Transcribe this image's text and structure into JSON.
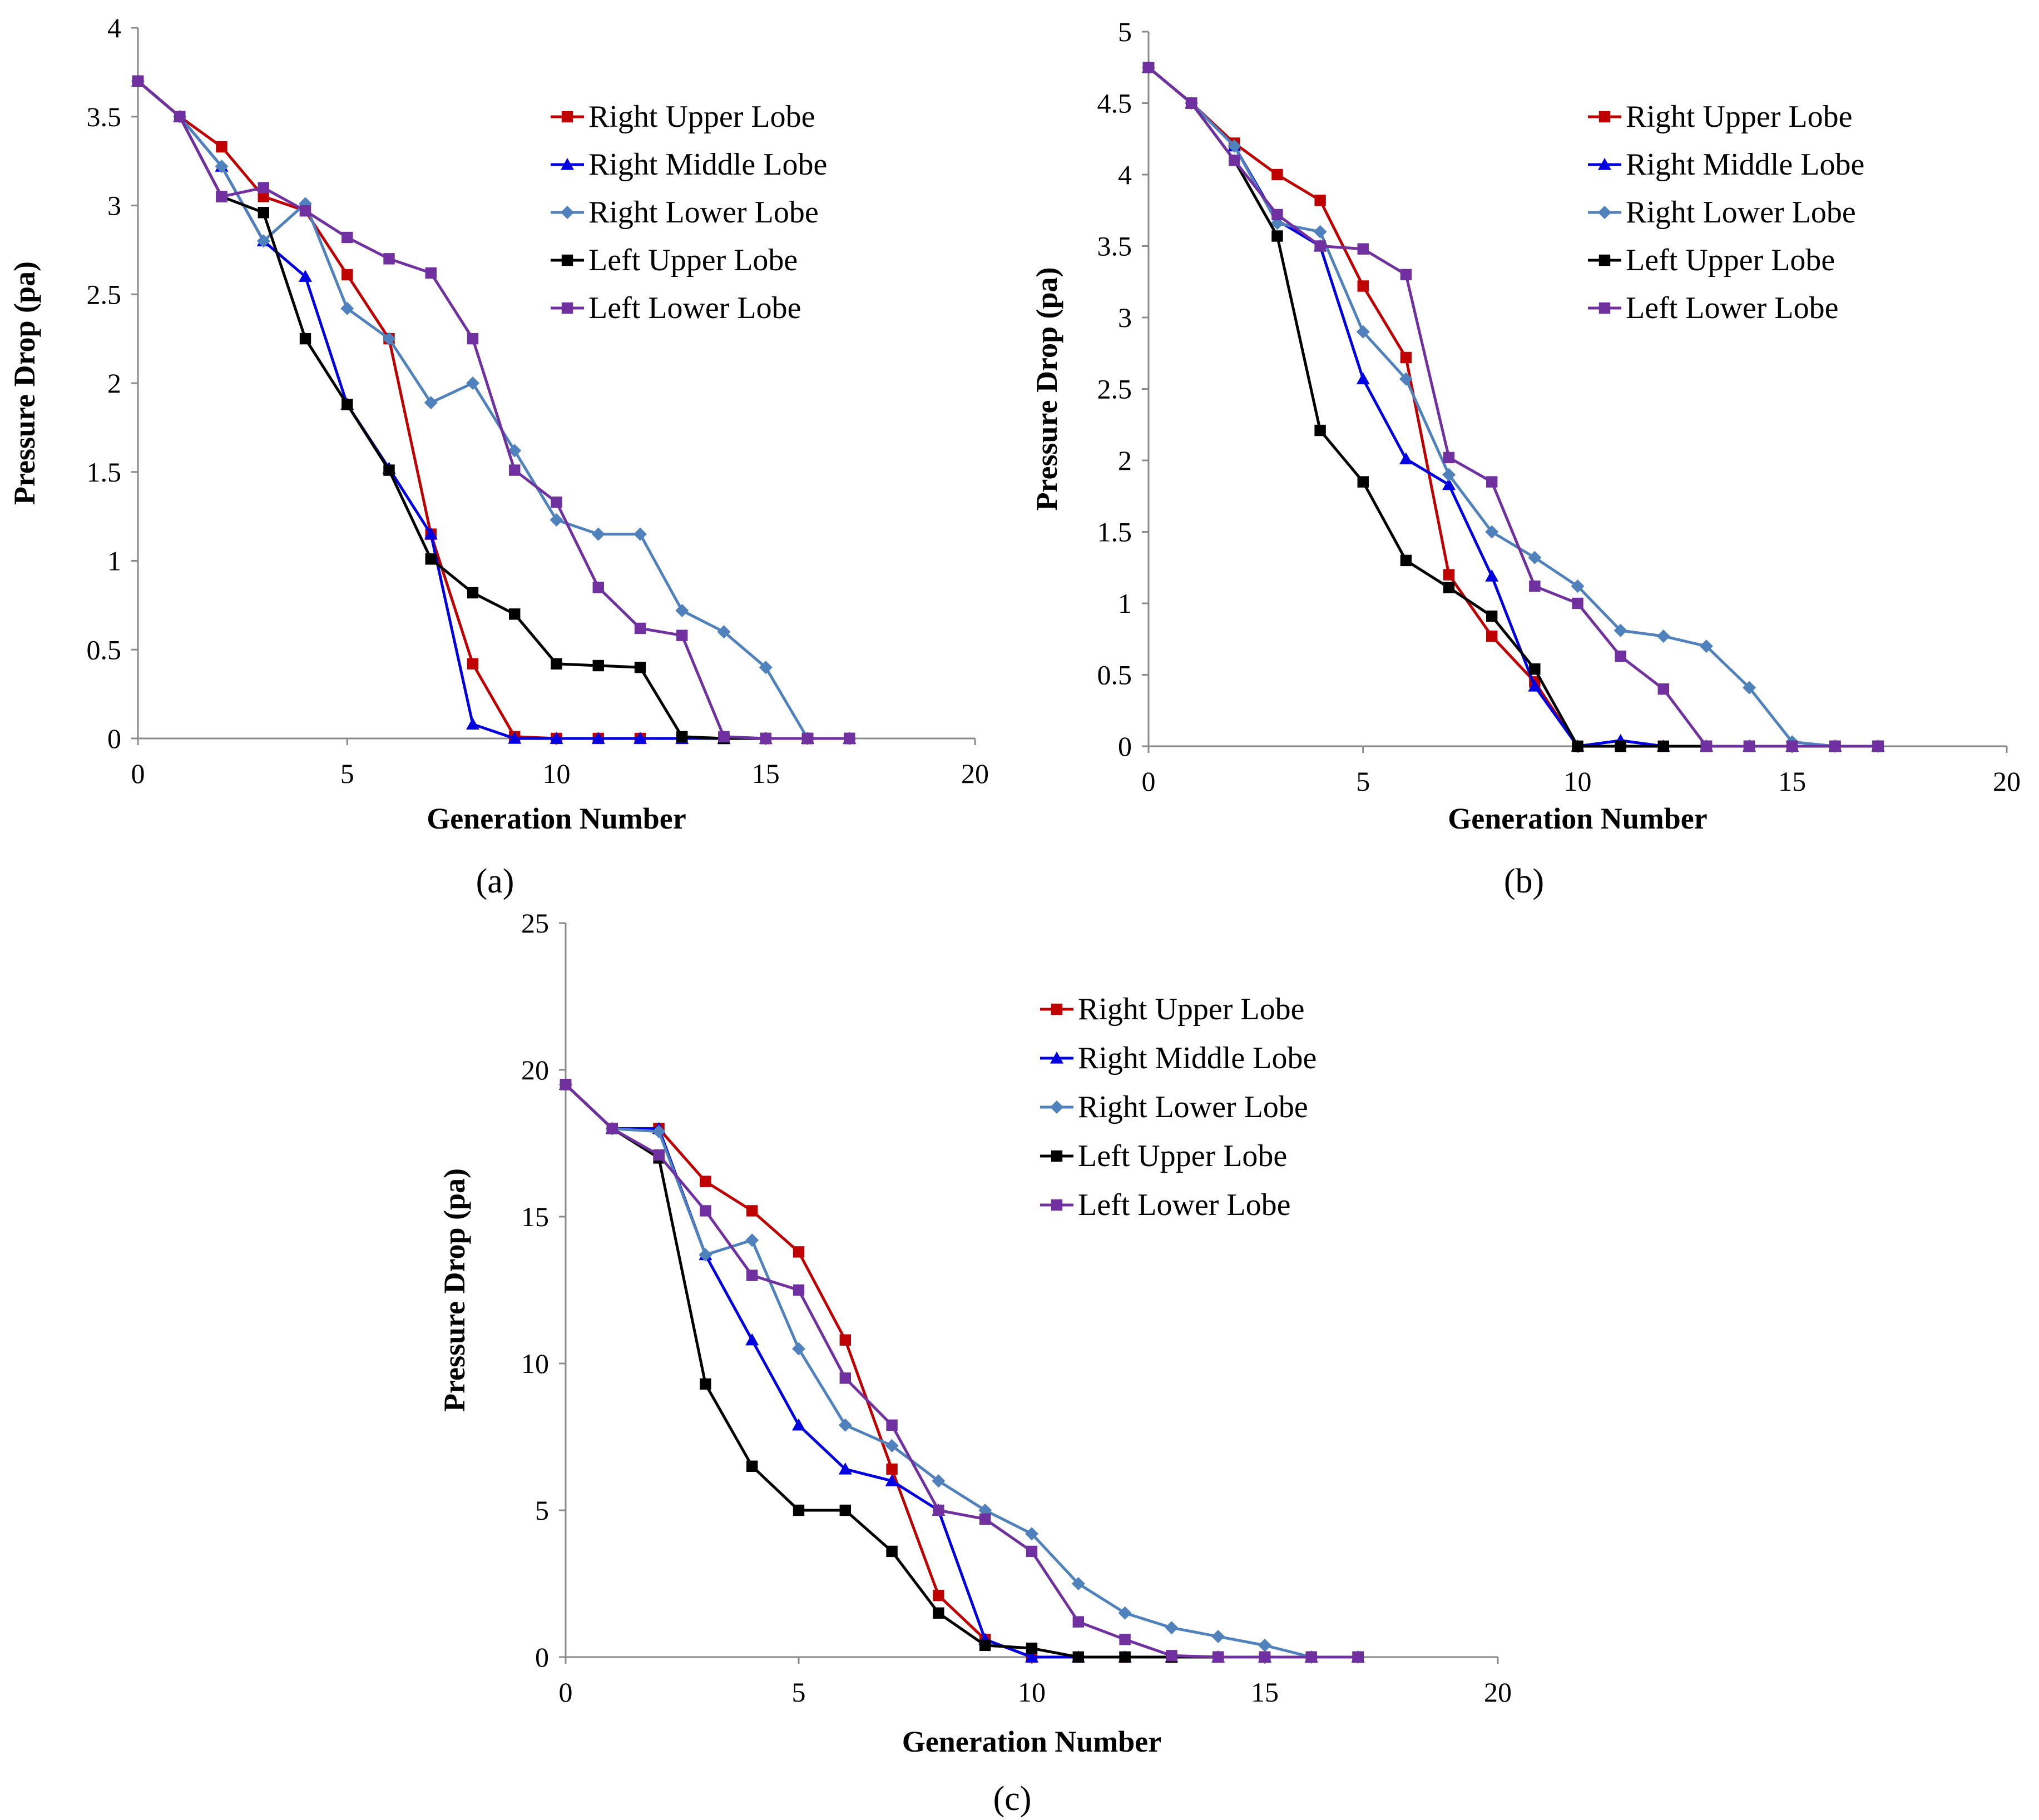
{
  "chart_data": [
    {
      "type": "line",
      "panel_label": "(a)",
      "title": "",
      "xlabel": "Generation Number",
      "ylabel": "Pressure Drop (pa)",
      "xlim": [
        0,
        20
      ],
      "ylim": [
        0,
        4
      ],
      "xticks": [
        0,
        5,
        10,
        15,
        20
      ],
      "yticks": [
        0,
        0.5,
        1,
        1.5,
        2,
        2.5,
        3,
        3.5,
        4
      ],
      "ytick_labels": [
        "0",
        "0.5",
        "1",
        "1.5",
        "2",
        "2.5",
        "3",
        "3.5",
        "4"
      ],
      "grid": false,
      "legend_position": "top-right",
      "series": [
        {
          "name": "Right Upper Lobe",
          "color": "#c00000",
          "marker": "square",
          "x": [
            0,
            1,
            2,
            3,
            4,
            5,
            6,
            7,
            8,
            9,
            10,
            11,
            12,
            13,
            14,
            15,
            16,
            17
          ],
          "y": [
            3.7,
            3.5,
            3.33,
            3.05,
            2.97,
            2.61,
            2.25,
            1.15,
            0.42,
            0.01,
            0,
            0,
            0,
            0,
            0,
            0,
            0,
            0
          ]
        },
        {
          "name": "Right Middle Lobe",
          "color": "#0000e0",
          "marker": "triangle",
          "x": [
            0,
            1,
            2,
            3,
            4,
            5,
            6,
            7,
            8,
            9,
            10,
            11,
            12,
            13,
            14,
            15,
            16,
            17
          ],
          "y": [
            3.7,
            3.5,
            3.22,
            2.8,
            2.6,
            1.88,
            1.52,
            1.15,
            0.08,
            0,
            0,
            0,
            0,
            0,
            0,
            0,
            0,
            0
          ]
        },
        {
          "name": "Right Lower Lobe",
          "color": "#4f81bd",
          "marker": "diamond",
          "x": [
            0,
            1,
            2,
            3,
            4,
            5,
            6,
            7,
            8,
            9,
            10,
            11,
            12,
            13,
            14,
            15,
            16,
            17
          ],
          "y": [
            3.7,
            3.5,
            3.22,
            2.8,
            3.01,
            2.42,
            2.25,
            1.89,
            2.0,
            1.62,
            1.23,
            1.15,
            1.15,
            0.72,
            0.6,
            0.4,
            0,
            0
          ]
        },
        {
          "name": "Left Upper Lobe",
          "color": "#000000",
          "marker": "square",
          "x": [
            0,
            1,
            2,
            3,
            4,
            5,
            6,
            7,
            8,
            9,
            10,
            11,
            12,
            13,
            14,
            15,
            16,
            17
          ],
          "y": [
            3.7,
            3.5,
            3.05,
            2.96,
            2.25,
            1.88,
            1.51,
            1.01,
            0.82,
            0.7,
            0.42,
            0.41,
            0.4,
            0.01,
            0,
            0,
            0,
            0
          ]
        },
        {
          "name": "Left Lower Lobe",
          "color": "#7030a0",
          "marker": "square",
          "x": [
            0,
            1,
            2,
            3,
            4,
            5,
            6,
            7,
            8,
            9,
            10,
            11,
            12,
            13,
            14,
            15,
            16,
            17
          ],
          "y": [
            3.7,
            3.5,
            3.05,
            3.1,
            2.97,
            2.82,
            2.7,
            2.62,
            2.25,
            1.51,
            1.33,
            0.85,
            0.62,
            0.58,
            0.01,
            0,
            0,
            0
          ]
        }
      ]
    },
    {
      "type": "line",
      "panel_label": "(b)",
      "title": "",
      "xlabel": "Generation Number",
      "ylabel": "Pressure Drop (pa)",
      "xlim": [
        0,
        20
      ],
      "ylim": [
        0,
        5
      ],
      "xticks": [
        0,
        5,
        10,
        15,
        20
      ],
      "yticks": [
        0,
        0.5,
        1,
        1.5,
        2,
        2.5,
        3,
        3.5,
        4,
        4.5,
        5
      ],
      "ytick_labels": [
        "0",
        "0.5",
        "1",
        "1.5",
        "2",
        "2.5",
        "3",
        "3.5",
        "4",
        "4.5",
        "5"
      ],
      "grid": false,
      "legend_position": "top-right",
      "series": [
        {
          "name": "Right Upper Lobe",
          "color": "#c00000",
          "marker": "square",
          "x": [
            0,
            1,
            2,
            3,
            4,
            5,
            6,
            7,
            8,
            9,
            10,
            11,
            12,
            13,
            14,
            15,
            16,
            17
          ],
          "y": [
            4.75,
            4.5,
            4.22,
            4.0,
            3.82,
            3.22,
            2.72,
            1.2,
            0.77,
            0.45,
            0,
            0,
            0,
            0,
            0,
            0,
            0,
            0
          ]
        },
        {
          "name": "Right Middle Lobe",
          "color": "#0000e0",
          "marker": "triangle",
          "x": [
            0,
            1,
            2,
            3,
            4,
            5,
            6,
            7,
            8,
            9,
            10,
            11,
            12,
            13,
            14,
            15,
            16,
            17
          ],
          "y": [
            4.75,
            4.5,
            4.2,
            3.68,
            3.5,
            2.57,
            2.01,
            1.83,
            1.19,
            0.42,
            0,
            0.04,
            0,
            0,
            0,
            0,
            0,
            0
          ]
        },
        {
          "name": "Right Lower Lobe",
          "color": "#4f81bd",
          "marker": "diamond",
          "x": [
            0,
            1,
            2,
            3,
            4,
            5,
            6,
            7,
            8,
            9,
            10,
            11,
            12,
            13,
            14,
            15,
            16,
            17
          ],
          "y": [
            4.75,
            4.5,
            4.2,
            3.66,
            3.6,
            2.9,
            2.57,
            1.9,
            1.5,
            1.32,
            1.12,
            0.81,
            0.77,
            0.7,
            0.41,
            0.03,
            0,
            0
          ]
        },
        {
          "name": "Left Upper Lobe",
          "color": "#000000",
          "marker": "square",
          "x": [
            0,
            1,
            2,
            3,
            4,
            5,
            6,
            7,
            8,
            9,
            10,
            11,
            12,
            13,
            14,
            15,
            16,
            17
          ],
          "y": [
            4.75,
            4.5,
            4.1,
            3.57,
            2.21,
            1.85,
            1.3,
            1.11,
            0.91,
            0.54,
            0,
            0,
            0,
            0,
            0,
            0,
            0,
            0
          ]
        },
        {
          "name": "Left Lower Lobe",
          "color": "#7030a0",
          "marker": "square",
          "x": [
            0,
            1,
            2,
            3,
            4,
            5,
            6,
            7,
            8,
            9,
            10,
            11,
            12,
            13,
            14,
            15,
            16,
            17
          ],
          "y": [
            4.75,
            4.5,
            4.1,
            3.72,
            3.5,
            3.48,
            3.3,
            2.02,
            1.85,
            1.12,
            1.0,
            0.63,
            0.4,
            0,
            0,
            0,
            0,
            0
          ]
        }
      ]
    },
    {
      "type": "line",
      "panel_label": "(c)",
      "title": "",
      "xlabel": "Generation Number",
      "ylabel": "Pressure Drop (pa)",
      "xlim": [
        0,
        20
      ],
      "ylim": [
        0,
        25
      ],
      "xticks": [
        0,
        5,
        10,
        15,
        20
      ],
      "yticks": [
        0,
        5,
        10,
        15,
        20,
        25
      ],
      "ytick_labels": [
        "0",
        "5",
        "10",
        "15",
        "20",
        "25"
      ],
      "grid": false,
      "legend_position": "top-right",
      "series": [
        {
          "name": "Right Upper Lobe",
          "color": "#c00000",
          "marker": "square",
          "x": [
            0,
            1,
            2,
            3,
            4,
            5,
            6,
            7,
            8,
            9,
            10,
            11,
            12,
            13,
            14,
            15,
            16,
            17
          ],
          "y": [
            19.5,
            18.0,
            18.0,
            16.2,
            15.2,
            13.8,
            10.8,
            6.4,
            2.1,
            0.6,
            0,
            0,
            0,
            0,
            0,
            0,
            0,
            0
          ]
        },
        {
          "name": "Right Middle Lobe",
          "color": "#0000e0",
          "marker": "triangle",
          "x": [
            0,
            1,
            2,
            3,
            4,
            5,
            6,
            7,
            8,
            9,
            10,
            11,
            12,
            13,
            14,
            15,
            16,
            17
          ],
          "y": [
            19.5,
            18.0,
            18.0,
            13.7,
            10.8,
            7.9,
            6.4,
            6.0,
            5.0,
            0.6,
            0,
            0,
            0,
            0,
            0,
            0,
            0,
            0
          ]
        },
        {
          "name": "Right Lower Lobe",
          "color": "#4f81bd",
          "marker": "diamond",
          "x": [
            0,
            1,
            2,
            3,
            4,
            5,
            6,
            7,
            8,
            9,
            10,
            11,
            12,
            13,
            14,
            15,
            16,
            17
          ],
          "y": [
            19.5,
            18.0,
            17.9,
            13.7,
            14.2,
            10.5,
            7.9,
            7.2,
            6.0,
            5.0,
            4.2,
            2.5,
            1.5,
            1.0,
            0.7,
            0.4,
            0,
            0
          ]
        },
        {
          "name": "Left Upper Lobe",
          "color": "#000000",
          "marker": "square",
          "x": [
            0,
            1,
            2,
            3,
            4,
            5,
            6,
            7,
            8,
            9,
            10,
            11,
            12,
            13,
            14,
            15,
            16,
            17
          ],
          "y": [
            19.5,
            18.0,
            17.0,
            9.3,
            6.5,
            5.0,
            5.0,
            3.6,
            1.5,
            0.4,
            0.3,
            0,
            0,
            0,
            0,
            0,
            0,
            0
          ]
        },
        {
          "name": "Left Lower Lobe",
          "color": "#7030a0",
          "marker": "square",
          "x": [
            0,
            1,
            2,
            3,
            4,
            5,
            6,
            7,
            8,
            9,
            10,
            11,
            12,
            13,
            14,
            15,
            16,
            17
          ],
          "y": [
            19.5,
            18.0,
            17.1,
            15.2,
            13.0,
            12.5,
            9.5,
            7.9,
            5.0,
            4.7,
            3.6,
            1.2,
            0.6,
            0.05,
            0,
            0,
            0,
            0
          ]
        }
      ]
    }
  ]
}
